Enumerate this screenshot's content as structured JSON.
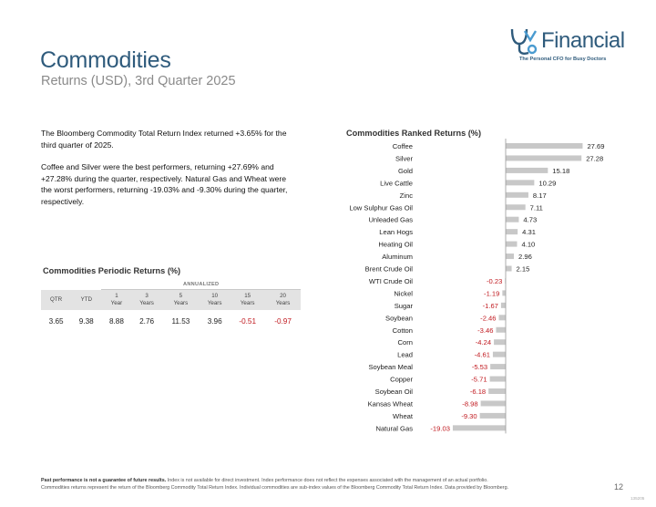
{
  "header": {
    "title": "Commodities",
    "subtitle": "Returns (USD), 3rd Quarter 2025"
  },
  "logo": {
    "brand": "Financial",
    "tagline": "The Personal CFO for Busy Doctors",
    "icon": "stethoscope-logo-icon",
    "color": "#2f5b7c"
  },
  "summary": {
    "paragraph1": "The Bloomberg Commodity Total Return Index returned +3.65% for the third quarter of 2025.",
    "paragraph2": "Coffee and Silver were the best performers, returning +27.69% and +27.28% during the quarter, respectively. Natural Gas and Wheat were the worst performers, returning -19.03% and -9.30% during the quarter, respectively."
  },
  "periodic": {
    "title": "Commodities Periodic Returns (%)",
    "annualized_label": "ANNUALIZED",
    "headers": [
      {
        "line1": "QTR",
        "line2": ""
      },
      {
        "line1": "YTD",
        "line2": ""
      },
      {
        "line1": "1",
        "line2": "Year"
      },
      {
        "line1": "3",
        "line2": "Years"
      },
      {
        "line1": "5",
        "line2": "Years"
      },
      {
        "line1": "10",
        "line2": "Years"
      },
      {
        "line1": "15",
        "line2": "Years"
      },
      {
        "line1": "20",
        "line2": "Years"
      }
    ],
    "values": [
      "3.65",
      "9.38",
      "8.88",
      "2.76",
      "11.53",
      "3.96",
      "-0.51",
      "-0.97"
    ],
    "negative_color": "#c0181e"
  },
  "chart_data": {
    "type": "bar",
    "orientation": "horizontal",
    "title": "Commodities Ranked Returns (%)",
    "categories": [
      "Coffee",
      "Silver",
      "Gold",
      "Live Cattle",
      "Zinc",
      "Low Sulphur Gas Oil",
      "Unleaded Gas",
      "Lean Hogs",
      "Heating Oil",
      "Aluminum",
      "Brent Crude Oil",
      "WTI Crude Oil",
      "Nickel",
      "Sugar",
      "Soybean",
      "Cotton",
      "Corn",
      "Lead",
      "Soybean Meal",
      "Copper",
      "Soybean Oil",
      "Kansas Wheat",
      "Wheat",
      "Natural Gas"
    ],
    "values": [
      27.69,
      27.28,
      15.18,
      10.29,
      8.17,
      7.11,
      4.73,
      4.31,
      4.1,
      2.96,
      2.15,
      -0.23,
      -1.19,
      -1.67,
      -2.46,
      -3.46,
      -4.24,
      -4.61,
      -5.53,
      -5.71,
      -6.18,
      -8.98,
      -9.3,
      -19.03
    ],
    "labels": [
      "27.69",
      "27.28",
      "15.18",
      "10.29",
      "8.17",
      "7.11",
      "4.73",
      "4.31",
      "4.10",
      "2.96",
      "2.15",
      "-0.23",
      "-1.19",
      "-1.67",
      "-2.46",
      "-3.46",
      "-4.24",
      "-4.61",
      "-5.53",
      "-5.71",
      "-6.18",
      "-8.98",
      "-9.30",
      "-19.03"
    ],
    "xlim": [
      -19.03,
      27.69
    ],
    "grid": false,
    "bar_color": "#c8c8c8",
    "positive_label_color": "#222222",
    "negative_label_color": "#c0181e",
    "axis_color": "#999999"
  },
  "footer": {
    "bold": "Past performance is not a guarantee of future results.",
    "line1_rest": " Index is not available for direct investment. Index performance does not reflect the expenses associated with the management of an actual portfolio.",
    "line2": "Commodities returns represent the return of the Bloomberg Commodity Total Return Index. Individual commodities are sub-index values of the Bloomberg Commodity Total Return Index. Data provided by Bloomberg.",
    "page_number": "12",
    "code": "135205"
  }
}
